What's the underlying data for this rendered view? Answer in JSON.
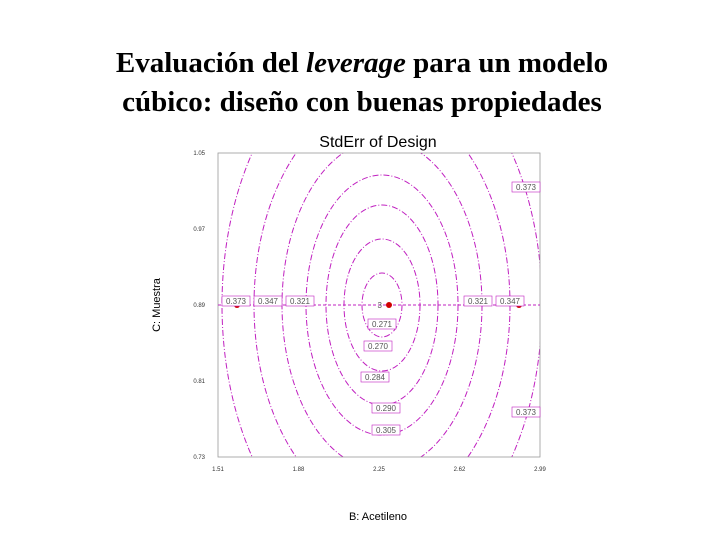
{
  "slide": {
    "title_start": "Evaluación del",
    "title_italic": "leverage",
    "title_end": "para un modelo",
    "title_line2": "cúbico: diseño con buenas propiedades"
  },
  "plot": {
    "title": "StdErr of Design",
    "x_label": "B: Acetileno",
    "y_label": "C: Muestra",
    "x_ticks": [
      "1.51",
      "1.88",
      "2.25",
      "2.62",
      "2.99"
    ],
    "y_ticks": [
      "1.05",
      "0.97",
      "0.89",
      "0.81",
      "0.73"
    ],
    "contour_labels": [
      "0.373",
      "0.347",
      "0.321",
      "0.321",
      "0.347",
      "0.373",
      "0.373",
      "0.271",
      "0.270",
      "0.284",
      "0.290",
      "0.305"
    ],
    "point_label": "3"
  }
}
